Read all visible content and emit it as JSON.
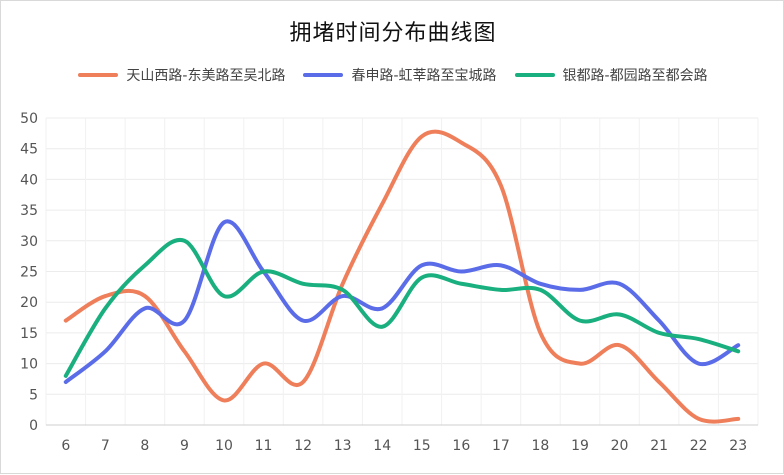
{
  "chart_data": {
    "type": "line",
    "title": "拥堵时间分布曲线图",
    "xlabel": "",
    "ylabel": "",
    "categories": [
      "6",
      "7",
      "8",
      "9",
      "10",
      "11",
      "12",
      "13",
      "14",
      "15",
      "16",
      "17",
      "18",
      "19",
      "20",
      "21",
      "22",
      "23"
    ],
    "ylim": [
      0,
      50
    ],
    "yticks": [
      "0",
      "5",
      "10",
      "15",
      "20",
      "25",
      "30",
      "35",
      "40",
      "45",
      "50"
    ],
    "grid": true,
    "legend_position": "top",
    "series": [
      {
        "name": "天山西路-东美路至吴北路",
        "color": "#ee7f5a",
        "values": [
          17,
          21,
          21,
          12,
          4,
          10,
          7,
          23,
          36,
          47,
          46,
          39,
          15,
          10,
          13,
          7,
          1,
          1
        ]
      },
      {
        "name": "春申路-虹莘路至宝城路",
        "color": "#5b6ce8",
        "values": [
          7,
          12,
          19,
          17,
          33,
          25,
          17,
          21,
          19,
          26,
          25,
          26,
          23,
          22,
          23,
          17,
          10,
          13
        ]
      },
      {
        "name": "银都路-都园路至都会路",
        "color": "#1aaf7e",
        "values": [
          8,
          19,
          26,
          30,
          21,
          25,
          23,
          22,
          16,
          24,
          23,
          22,
          22,
          17,
          18,
          15,
          14,
          12
        ]
      }
    ]
  }
}
